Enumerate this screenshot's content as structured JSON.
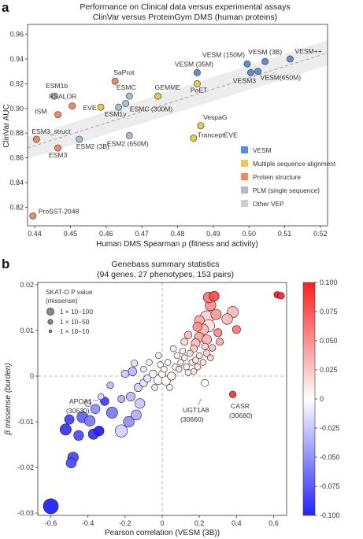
{
  "panel_a": {
    "letter": "a",
    "title_line1": "Performance on Clinical data versus experimental assays",
    "title_line2": "ClinVar versus ProteinGym DMS (human proteins)"
  },
  "panel_b": {
    "letter": "b",
    "title_line1": "Genebass summary statistics",
    "title_line2": "(94 genes, 27 phenotypes, 153 pairs)"
  },
  "colors": {
    "VESM": "#5b8ed6",
    "Multiple sequence alignment": "#ecc84e",
    "Protein structure": "#ec8b65",
    "PLM (single sequence)": "#a9bfd6",
    "Other VEP": "#cfcfcf",
    "cmap_low": "#2323ff",
    "cmap_mid": "#ffffff",
    "cmap_high": "#ff2020"
  },
  "chart_data": [
    {
      "type": "scatter",
      "xlabel": "Human DMS Spearman ρ (fitness and activity)",
      "ylabel": "ClinVar AUC",
      "xlim": [
        0.438,
        0.522
      ],
      "ylim": [
        0.805,
        0.968
      ],
      "xticks": [
        "0.44",
        "0.45",
        "0.46",
        "0.47",
        "0.48",
        "0.49",
        "0.50",
        "0.51",
        "0.52"
      ],
      "yticks": [
        "0.82",
        "0.84",
        "0.86",
        "0.88",
        "0.90",
        "0.92",
        "0.94",
        "0.96"
      ],
      "legend": [
        "VESM",
        "Multiple sequence alignment",
        "Protein structure",
        "PLM (single sequence)",
        "Other VEP"
      ],
      "legend_position": "bottom-right",
      "trend_line": {
        "x": [
          0.438,
          0.522
        ],
        "y": [
          0.868,
          0.945
        ]
      },
      "points": [
        {
          "label": "VESM (150M)",
          "group": "VESM",
          "x": 0.4995,
          "y": 0.936
        },
        {
          "label": "VESM (3B)",
          "group": "VESM",
          "x": 0.5045,
          "y": 0.938
        },
        {
          "label": "VESM++",
          "group": "VESM",
          "x": 0.5115,
          "y": 0.94
        },
        {
          "label": "VESM(650M)",
          "group": "VESM",
          "x": 0.5025,
          "y": 0.93
        },
        {
          "label": "VESM3",
          "group": "VESM",
          "x": 0.5005,
          "y": 0.929
        },
        {
          "label": "VESM (35M)",
          "group": "VESM",
          "x": 0.4855,
          "y": 0.929
        },
        {
          "label": "SaProt",
          "group": "Protein structure",
          "x": 0.4625,
          "y": 0.922
        },
        {
          "label": "ESM1b",
          "group": "PLM (single sequence)",
          "x": 0.4455,
          "y": 0.91
        },
        {
          "label": "RSALOR",
          "group": "Protein structure",
          "x": 0.4505,
          "y": 0.902
        },
        {
          "label": "ISM",
          "group": "Protein structure",
          "x": 0.4465,
          "y": 0.895
        },
        {
          "label": "EVE",
          "group": "Multiple sequence alignment",
          "x": 0.4585,
          "y": 0.901
        },
        {
          "label": "ESM1v",
          "group": "PLM (single sequence)",
          "x": 0.4635,
          "y": 0.901
        },
        {
          "label": "ESMC (300M)",
          "group": "PLM (single sequence)",
          "x": 0.4655,
          "y": 0.904
        },
        {
          "label": "ESMC",
          "group": "PLM (single sequence)",
          "x": 0.4665,
          "y": 0.91
        },
        {
          "label": "GEMME",
          "group": "Multiple sequence alignment",
          "x": 0.4745,
          "y": 0.91
        },
        {
          "label": "PoET",
          "group": "Multiple sequence alignment",
          "x": 0.4855,
          "y": 0.92
        },
        {
          "label": "ESM3_struct",
          "group": "Protein structure",
          "x": 0.4405,
          "y": 0.875
        },
        {
          "label": "ESM3",
          "group": "Protein structure",
          "x": 0.4465,
          "y": 0.868
        },
        {
          "label": "ESM2 (3B)",
          "group": "PLM (single sequence)",
          "x": 0.4525,
          "y": 0.875
        },
        {
          "label": "ESM2 (650M)",
          "group": "PLM (single sequence)",
          "x": 0.4665,
          "y": 0.878
        },
        {
          "label": "VespaG",
          "group": "Multiple sequence alignment",
          "x": 0.4865,
          "y": 0.886
        },
        {
          "label": "TranceptEVE",
          "group": "Multiple sequence alignment",
          "x": 0.4845,
          "y": 0.876
        },
        {
          "label": "ProSST-2048",
          "group": "Protein structure",
          "x": 0.4395,
          "y": 0.813
        }
      ]
    },
    {
      "type": "scatter",
      "xlabel": "Pearson correlation (VESM (3B))",
      "ylabel": "β missense (burden)",
      "xlim": [
        -0.67,
        0.67
      ],
      "ylim": [
        -0.0305,
        0.0205
      ],
      "xticks": [
        "-0.6",
        "-0.4",
        "-0.2",
        "0",
        "0.2",
        "0.4",
        "0.6"
      ],
      "yticks": [
        "0.02",
        "0.01",
        "0",
        "-0.01",
        "-0.02",
        "-0.03"
      ],
      "color_scale": {
        "label_values": [
          "0.100",
          "0.075",
          "0.050",
          "0.025",
          "0",
          "-0.025",
          "-0.050",
          "-0.075",
          "-0.100"
        ],
        "min": -0.1,
        "max": 0.1
      },
      "size_legend": {
        "title_line1": "SKAT-O P value",
        "title_line2": "(missense)",
        "entries": [
          "1 × 10−100",
          "1 × 10−50",
          "1 × 10−10"
        ]
      },
      "annotations": [
        {
          "name": "APOA1",
          "code": "(30630)",
          "x": -0.29,
          "y": -0.0057
        },
        {
          "name": "UGT1A8",
          "code": "(30660)",
          "x": 0.25,
          "y": -0.0015
        },
        {
          "name": "CASR",
          "code": "(30680)",
          "x": 0.38,
          "y": -0.004
        }
      ],
      "points": [
        {
          "x": -0.6,
          "y": -0.0285,
          "p": 70,
          "c": -0.1
        },
        {
          "x": -0.48,
          "y": -0.0178,
          "p": 30,
          "c": -0.082
        },
        {
          "x": -0.49,
          "y": -0.019,
          "p": 26,
          "c": -0.08
        },
        {
          "x": -0.52,
          "y": -0.0117,
          "p": 34,
          "c": -0.09
        },
        {
          "x": -0.5,
          "y": -0.0095,
          "p": 22,
          "c": -0.085
        },
        {
          "x": -0.45,
          "y": -0.013,
          "p": 24,
          "c": -0.08
        },
        {
          "x": -0.43,
          "y": -0.009,
          "p": 32,
          "c": -0.07
        },
        {
          "x": -0.39,
          "y": -0.0098,
          "p": 30,
          "c": -0.06
        },
        {
          "x": -0.37,
          "y": -0.0127,
          "p": 28,
          "c": -0.09
        },
        {
          "x": -0.34,
          "y": -0.012,
          "p": 24,
          "c": -0.1
        },
        {
          "x": -0.36,
          "y": -0.0072,
          "p": 20,
          "c": -0.05
        },
        {
          "x": -0.31,
          "y": -0.0055,
          "p": 16,
          "c": -0.085
        },
        {
          "x": -0.27,
          "y": -0.008,
          "p": 34,
          "c": -0.06
        },
        {
          "x": -0.22,
          "y": -0.012,
          "p": 42,
          "c": -0.02
        },
        {
          "x": -0.18,
          "y": -0.01,
          "p": 30,
          "c": -0.05
        },
        {
          "x": -0.14,
          "y": -0.0085,
          "p": 26,
          "c": -0.035
        },
        {
          "x": -0.12,
          "y": -0.006,
          "p": 24,
          "c": -0.025
        },
        {
          "x": -0.17,
          "y": -0.0045,
          "p": 18,
          "c": -0.03
        },
        {
          "x": -0.22,
          "y": -0.005,
          "p": 10,
          "c": -0.035
        },
        {
          "x": -0.28,
          "y": -0.002,
          "p": 8,
          "c": -0.03
        },
        {
          "x": -0.13,
          "y": -0.0025,
          "p": 14,
          "c": -0.02
        },
        {
          "x": -0.1,
          "y": -0.0015,
          "p": 12,
          "c": -0.015
        },
        {
          "x": -0.08,
          "y": -0.0005,
          "p": 10,
          "c": -0.01
        },
        {
          "x": -0.05,
          "y": 0.0005,
          "p": 12,
          "c": -0.005
        },
        {
          "x": -0.16,
          "y": 0.001,
          "p": 16,
          "c": -0.03
        },
        {
          "x": -0.2,
          "y": 0.0005,
          "p": 12,
          "c": -0.025
        },
        {
          "x": -0.15,
          "y": 0.0028,
          "p": 8,
          "c": -0.015
        },
        {
          "x": -0.33,
          "y": -0.0045,
          "p": 6,
          "c": -0.02
        },
        {
          "x": -0.4,
          "y": -0.006,
          "p": 6,
          "c": -0.015
        },
        {
          "x": 0.02,
          "y": -0.001,
          "p": 20,
          "c": 0.0
        },
        {
          "x": -0.02,
          "y": -0.0008,
          "p": 22,
          "c": 0.0
        },
        {
          "x": 0.05,
          "y": 0.0,
          "p": 14,
          "c": 0.005
        },
        {
          "x": 0.0,
          "y": 0.0005,
          "p": 10,
          "c": -0.002
        },
        {
          "x": -0.04,
          "y": -0.0025,
          "p": 6,
          "c": -0.01
        },
        {
          "x": 0.04,
          "y": -0.0025,
          "p": 6,
          "c": 0.005
        },
        {
          "x": -0.1,
          "y": 0.0015,
          "p": 6,
          "c": -0.01
        },
        {
          "x": -0.07,
          "y": 0.003,
          "p": 6,
          "c": -0.005
        },
        {
          "x": 0.03,
          "y": 0.003,
          "p": 6,
          "c": 0.005
        },
        {
          "x": 0.07,
          "y": 0.002,
          "p": 6,
          "c": 0.005
        },
        {
          "x": 0.09,
          "y": 0.0015,
          "p": 6,
          "c": 0.01
        },
        {
          "x": 0.1,
          "y": 0.003,
          "p": 6,
          "c": 0.01
        },
        {
          "x": 0.12,
          "y": 0.004,
          "p": 6,
          "c": 0.01
        },
        {
          "x": 0.13,
          "y": 0.002,
          "p": 6,
          "c": 0.008
        },
        {
          "x": 0.15,
          "y": 0.005,
          "p": 6,
          "c": 0.012
        },
        {
          "x": 0.16,
          "y": 0.003,
          "p": 6,
          "c": 0.012
        },
        {
          "x": 0.18,
          "y": 0.0035,
          "p": 6,
          "c": 0.015
        },
        {
          "x": 0.19,
          "y": 0.002,
          "p": 6,
          "c": 0.015
        },
        {
          "x": 0.2,
          "y": 0.0045,
          "p": 6,
          "c": 0.015
        },
        {
          "x": 0.22,
          "y": 0.003,
          "p": 6,
          "c": 0.015
        },
        {
          "x": 0.24,
          "y": 0.005,
          "p": 8,
          "c": 0.02
        },
        {
          "x": 0.26,
          "y": 0.004,
          "p": 6,
          "c": 0.02
        },
        {
          "x": 0.08,
          "y": 0.0045,
          "p": 6,
          "c": 0.005
        },
        {
          "x": 0.11,
          "y": 0.0055,
          "p": 6,
          "c": 0.008
        },
        {
          "x": 0.06,
          "y": 0.006,
          "p": 6,
          "c": 0.005
        },
        {
          "x": 0.14,
          "y": 0.0008,
          "p": 6,
          "c": 0.008
        },
        {
          "x": 0.17,
          "y": 0.001,
          "p": 6,
          "c": 0.01
        },
        {
          "x": -0.02,
          "y": 0.0045,
          "p": 6,
          "c": -0.002
        },
        {
          "x": -0.01,
          "y": 0.0025,
          "p": 6,
          "c": 0.0
        },
        {
          "x": 0.01,
          "y": 0.0015,
          "p": 6,
          "c": 0.0
        },
        {
          "x": 0.18,
          "y": 0.0072,
          "p": 18,
          "c": 0.03
        },
        {
          "x": 0.2,
          "y": 0.0085,
          "p": 24,
          "c": 0.04
        },
        {
          "x": 0.24,
          "y": 0.008,
          "p": 22,
          "c": 0.035
        },
        {
          "x": 0.22,
          "y": 0.0102,
          "p": 30,
          "c": 0.03
        },
        {
          "x": 0.19,
          "y": 0.0108,
          "p": 20,
          "c": 0.05
        },
        {
          "x": 0.25,
          "y": 0.011,
          "p": 42,
          "c": 0.015
        },
        {
          "x": 0.24,
          "y": 0.0128,
          "p": 56,
          "c": 0.02
        },
        {
          "x": 0.2,
          "y": 0.0122,
          "p": 24,
          "c": 0.04
        },
        {
          "x": 0.26,
          "y": 0.0155,
          "p": 30,
          "c": 0.05
        },
        {
          "x": 0.29,
          "y": 0.0135,
          "p": 28,
          "c": 0.045
        },
        {
          "x": 0.25,
          "y": 0.0172,
          "p": 30,
          "c": 0.06
        },
        {
          "x": 0.28,
          "y": 0.0175,
          "p": 24,
          "c": 0.08
        },
        {
          "x": 0.35,
          "y": 0.0125,
          "p": 30,
          "c": 0.03
        },
        {
          "x": 0.38,
          "y": 0.014,
          "p": 34,
          "c": 0.03
        },
        {
          "x": 0.4,
          "y": 0.0102,
          "p": 14,
          "c": 0.06
        },
        {
          "x": 0.14,
          "y": 0.009,
          "p": 12,
          "c": 0.03
        },
        {
          "x": 0.12,
          "y": 0.0075,
          "p": 10,
          "c": 0.02
        },
        {
          "x": 0.17,
          "y": 0.006,
          "p": 10,
          "c": 0.025
        },
        {
          "x": 0.31,
          "y": 0.0075,
          "p": 10,
          "c": 0.04
        },
        {
          "x": 0.27,
          "y": 0.0062,
          "p": 8,
          "c": 0.03
        },
        {
          "x": 0.23,
          "y": 0.0065,
          "p": 8,
          "c": 0.02
        },
        {
          "x": 0.3,
          "y": 0.0095,
          "p": 14,
          "c": 0.05
        },
        {
          "x": 0.62,
          "y": 0.0178,
          "p": 8,
          "c": 0.1
        },
        {
          "x": 0.64,
          "y": 0.0176,
          "p": 8,
          "c": 0.095
        },
        {
          "x": 0.38,
          "y": -0.004,
          "p": 8,
          "c": 0.09
        },
        {
          "x": 0.23,
          "y": -0.0015,
          "p": 10,
          "c": 0.0
        }
      ]
    }
  ]
}
